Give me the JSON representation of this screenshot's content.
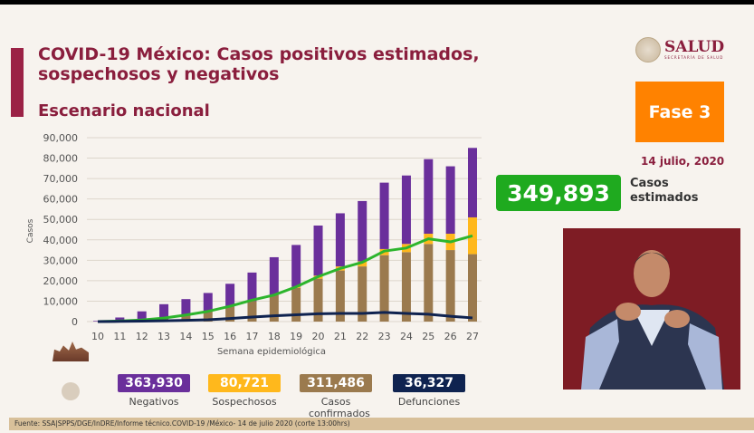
{
  "header": {
    "title": "COVID-19 México: Casos positivos estimados, sospechosos y negativos",
    "subtitle": "Escenario nacional"
  },
  "logo": {
    "name": "SALUD",
    "sub": "SECRETARÍA DE SALUD"
  },
  "phase": "Fase 3",
  "date": "14 julio, 2020",
  "estimated": {
    "value": "349,893",
    "label_line1": "Casos",
    "label_line2": "estimados",
    "color": "#1faa1f"
  },
  "legend": [
    {
      "value": "363,930",
      "label": "Negativos",
      "color": "#6a2f9b"
    },
    {
      "value": "80,721",
      "label": "Sospechosos",
      "color": "#ffb81c"
    },
    {
      "value": "311,486",
      "label": "Casos confirmados",
      "color": "#9b7a4e"
    },
    {
      "value": "36,327",
      "label": "Defunciones",
      "color": "#0f2350"
    }
  ],
  "source": "Fuente: SSA|SPPS/DGE/InDRE/Informe técnico.COVID-19 /México- 14 de julio 2020 (corte 13:00hrs)",
  "chart_data": {
    "type": "bar",
    "stacked": true,
    "xlabel": "Semana epidemiológica",
    "ylabel": "Casos",
    "ylim": [
      0,
      90000
    ],
    "yticks": [
      "0",
      "10,000",
      "20,000",
      "30,000",
      "40,000",
      "50,000",
      "60,000",
      "70,000",
      "80,000",
      "90,000"
    ],
    "categories": [
      "10",
      "11",
      "12",
      "13",
      "14",
      "15",
      "16",
      "17",
      "18",
      "19",
      "20",
      "21",
      "22",
      "23",
      "24",
      "25",
      "26",
      "27"
    ],
    "grid": true,
    "series": [
      {
        "name": "Casos confirmados",
        "kind": "bar",
        "color": "#9b7a4e",
        "values": [
          0,
          200,
          500,
          1500,
          3000,
          5000,
          7500,
          10000,
          13000,
          16500,
          21000,
          25000,
          27000,
          32500,
          34000,
          38000,
          35000,
          33000
        ]
      },
      {
        "name": "Sospechosos",
        "kind": "bar",
        "color": "#ffb81c",
        "values": [
          0,
          0,
          0,
          0,
          0,
          0,
          0,
          0,
          0,
          500,
          1500,
          2000,
          2500,
          3000,
          4000,
          5000,
          8000,
          18000
        ]
      },
      {
        "name": "Negativos",
        "kind": "bar",
        "color": "#6a2f9b",
        "values": [
          300,
          1800,
          4500,
          7000,
          8000,
          9000,
          11000,
          14000,
          18500,
          20500,
          24500,
          26000,
          29500,
          32500,
          33500,
          36500,
          33000,
          34000
        ]
      },
      {
        "name": "Casos estimados",
        "kind": "line",
        "color": "#2db52d",
        "values": [
          0,
          300,
          800,
          1700,
          3200,
          5000,
          7500,
          10500,
          13000,
          17000,
          22000,
          26000,
          29000,
          34500,
          36000,
          40500,
          39000,
          42000
        ]
      },
      {
        "name": "Defunciones",
        "kind": "line",
        "color": "#0f2350",
        "values": [
          0,
          100,
          200,
          400,
          600,
          900,
          1500,
          2200,
          2800,
          3300,
          3800,
          4000,
          4000,
          4500,
          4000,
          3600,
          2600,
          1800
        ]
      }
    ]
  }
}
